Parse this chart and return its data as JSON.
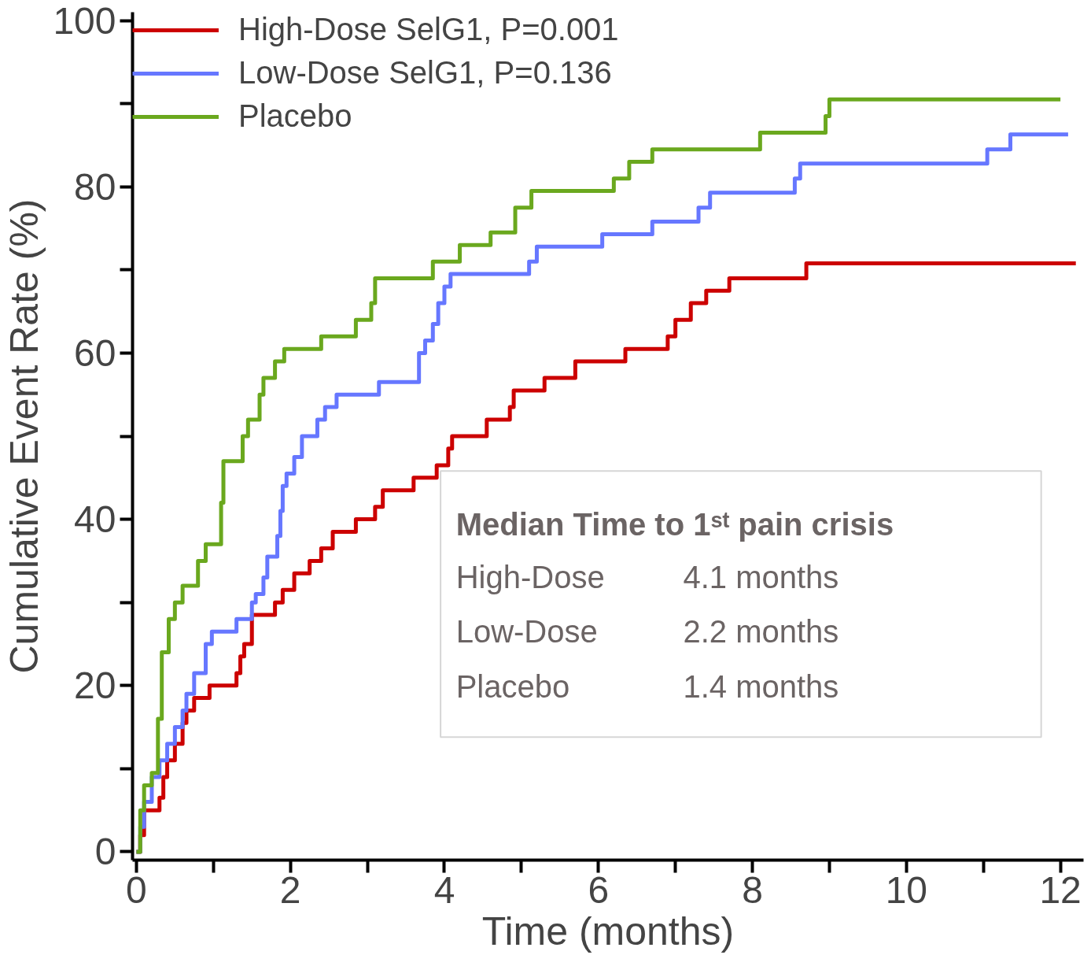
{
  "chart_data": {
    "type": "step",
    "xlabel": "Time (months)",
    "ylabel": "Cumulative Event Rate (%)",
    "xlim": [
      -0.05,
      12.3
    ],
    "ylim": [
      -1,
      101
    ],
    "xticks": [
      0,
      {
        "value": 1,
        "label": null
      },
      2,
      {
        "value": 3,
        "label": null
      },
      4,
      {
        "value": 5,
        "label": null
      },
      6,
      {
        "value": 7,
        "label": null
      },
      8,
      {
        "value": 9,
        "label": null
      },
      10,
      {
        "value": 11,
        "label": null
      },
      12
    ],
    "yticks": [
      0,
      {
        "value": 10,
        "label": null
      },
      20,
      {
        "value": 30,
        "label": null
      },
      40,
      {
        "value": 50,
        "label": null
      },
      60,
      {
        "value": 70,
        "label": null
      },
      80,
      {
        "value": 90,
        "label": null
      },
      100
    ],
    "grid": false,
    "legend": "top left",
    "line_style": "solid",
    "marker": "none",
    "series": [
      {
        "name": "High-Dose SelG1, P=0.001",
        "color": "#cc0000",
        "x": [
          0,
          0.05,
          0.1,
          0.3,
          0.35,
          0.4,
          0.5,
          0.6,
          0.65,
          0.75,
          0.95,
          1.3,
          1.35,
          1.4,
          1.5,
          1.8,
          1.9,
          2.05,
          2.25,
          2.4,
          2.55,
          2.85,
          3.1,
          3.2,
          3.6,
          3.9,
          4.05,
          4.1,
          4.55,
          4.85,
          4.9,
          5.3,
          5.7,
          6.35,
          6.9,
          7.0,
          7.2,
          7.4,
          7.7,
          8.7,
          12.2
        ],
        "values": [
          0,
          2,
          5,
          6.5,
          9,
          11,
          13,
          15.5,
          17,
          18.5,
          20,
          21.5,
          23.5,
          25,
          28.5,
          30,
          31.5,
          33.5,
          35,
          36.5,
          38.5,
          40,
          41.5,
          43.5,
          45,
          46.5,
          48.5,
          50,
          52,
          53.5,
          55.5,
          57,
          59,
          60.5,
          62,
          64,
          66,
          67.5,
          69,
          70.8,
          70.8
        ]
      },
      {
        "name": "Low-Dose SelG1, P=0.136",
        "color": "#6677ff",
        "x": [
          0,
          0.05,
          0.1,
          0.2,
          0.3,
          0.4,
          0.5,
          0.6,
          0.65,
          0.75,
          0.9,
          0.98,
          1.3,
          1.5,
          1.55,
          1.65,
          1.7,
          1.83,
          1.87,
          1.9,
          1.95,
          2.05,
          2.15,
          2.35,
          2.45,
          2.6,
          3.15,
          3.67,
          3.75,
          3.85,
          3.92,
          4.0,
          4.08,
          5.1,
          5.2,
          6.05,
          6.7,
          7.3,
          7.45,
          8.55,
          8.62,
          11.05,
          11.35,
          12.1
        ],
        "values": [
          0,
          3,
          6,
          9,
          11,
          13,
          15,
          17,
          19,
          21.5,
          25,
          26.5,
          28,
          30,
          31,
          33,
          35.5,
          38,
          41,
          44,
          45.5,
          47.5,
          50,
          52,
          53.5,
          55,
          56.5,
          60,
          61.5,
          63.5,
          66,
          68,
          69.5,
          71,
          72.8,
          74.3,
          75.8,
          77.5,
          79.3,
          81,
          82.8,
          84.5,
          86.3,
          86.3
        ]
      },
      {
        "name": "Placebo",
        "color": "#6aa81e",
        "x": [
          0,
          0.05,
          0.1,
          0.2,
          0.28,
          0.33,
          0.42,
          0.5,
          0.6,
          0.8,
          0.9,
          1.1,
          1.13,
          1.38,
          1.45,
          1.6,
          1.65,
          1.8,
          1.92,
          2.4,
          2.85,
          3.05,
          3.1,
          3.85,
          4.2,
          4.6,
          4.92,
          5.13,
          6.2,
          6.4,
          6.7,
          8.1,
          8.95,
          9.0,
          12.0
        ],
        "values": [
          0,
          5,
          8,
          9.5,
          16,
          24,
          28,
          30,
          32,
          35,
          37,
          42,
          47,
          50,
          52,
          55,
          57,
          59,
          60.5,
          62,
          64,
          66,
          69,
          71,
          73,
          74.5,
          77.5,
          79.5,
          81,
          83,
          84.5,
          86.5,
          88.5,
          90.5,
          90.5
        ]
      }
    ],
    "annotations": [
      "Median Time to 1ˢᵗ pain crisis",
      "High-Dose",
      "4.1 months",
      "Low-Dose",
      "2.2 months",
      "Placebo",
      "1.4 months"
    ]
  }
}
